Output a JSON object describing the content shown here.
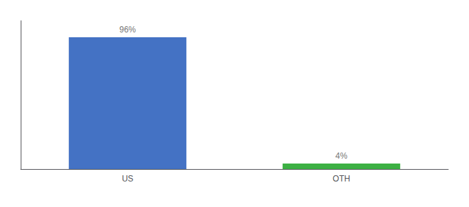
{
  "chart_data": {
    "type": "bar",
    "categories": [
      "US",
      "OTH"
    ],
    "values": [
      96,
      4
    ],
    "value_labels": [
      "96%",
      "4%"
    ],
    "colors": [
      "#4472c4",
      "#3cb043"
    ],
    "ylim": [
      0,
      108
    ],
    "data_labels": true,
    "tick_labels": "x",
    "grid": false
  }
}
